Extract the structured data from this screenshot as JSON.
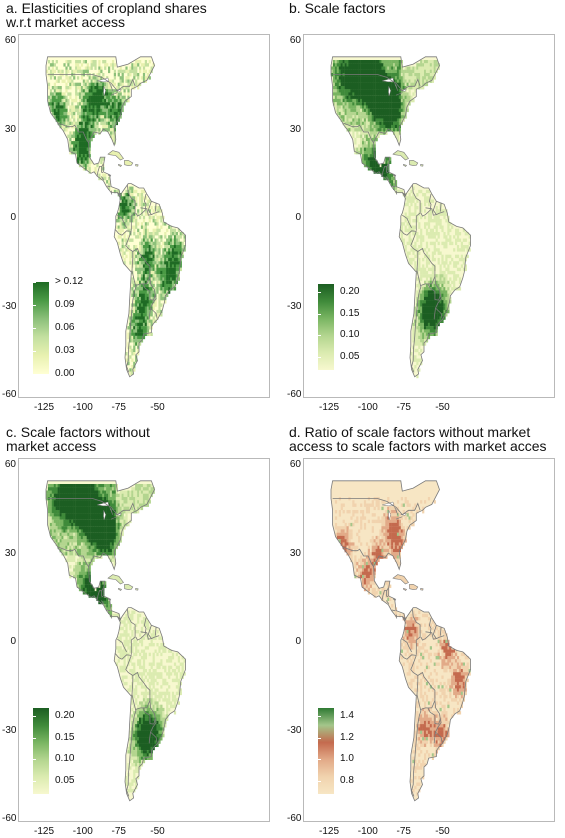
{
  "panels": [
    {
      "id": "a",
      "title_line1": "a. Elasticities of cropland shares",
      "title_line2": "w.r.t market access",
      "palette": [
        "#ffffd4",
        "#e8f1b0",
        "#c4e0a0",
        "#8cc07a",
        "#4a9a45",
        "#1f6b24"
      ],
      "legend_labels": [
        "> 0.12",
        "0.09",
        "0.06",
        "0.03",
        "0.00"
      ],
      "pattern": "patchy"
    },
    {
      "id": "b",
      "title_line1": "b. Scale factors",
      "title_line2": "",
      "palette": [
        "#f7f8cf",
        "#dbebb0",
        "#b3d58f",
        "#79b562",
        "#3f8a3a",
        "#1c5e22"
      ],
      "legend_labels": [
        "0.20",
        "0.15",
        "0.10",
        "0.05"
      ],
      "pattern": "dense"
    },
    {
      "id": "c",
      "title_line1": "c. Scale factors without",
      "title_line2": "market access",
      "palette": [
        "#f7f8cf",
        "#dbebb0",
        "#b3d58f",
        "#79b562",
        "#3f8a3a",
        "#1c5e22"
      ],
      "legend_labels": [
        "0.20",
        "0.15",
        "0.10",
        "0.05"
      ],
      "pattern": "dense"
    },
    {
      "id": "d",
      "title_line1": "d. Ratio of scale factors without market",
      "title_line2": "access to scale factors with market acces",
      "palette": [
        "#f7e6c4",
        "#f1d3ae",
        "#e2aa88",
        "#c46a4e",
        "#a3c68a",
        "#2f7a33"
      ],
      "legend_labels": [
        "1.4",
        "1.2",
        "1.0",
        "0.8"
      ],
      "pattern": "ratio"
    }
  ],
  "axes": {
    "lat_ticks": [
      "60",
      "30",
      "0",
      "-30",
      "-60"
    ],
    "lon_ticks": [
      "-125",
      "-100",
      "-75",
      "-50"
    ]
  },
  "colors": {
    "land_outline": "#7a7a7a",
    "frame": "#b9b9b9"
  }
}
